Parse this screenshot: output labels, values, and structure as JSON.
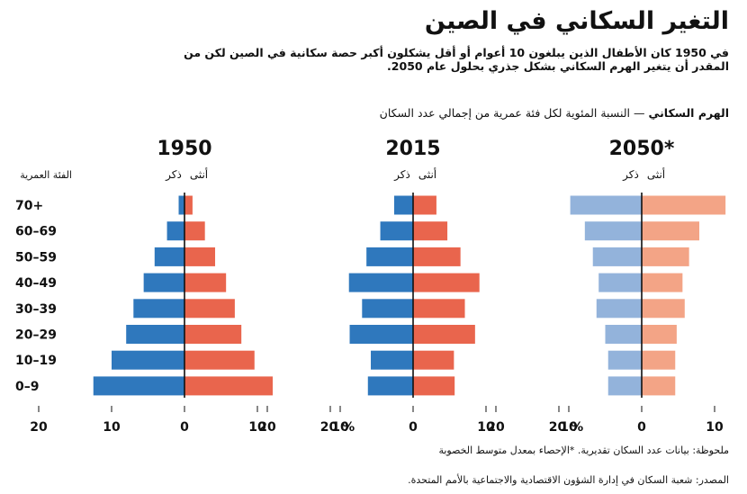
{
  "title": "التغير السكاني في الصين",
  "subtitle": "في 1950 كان الأطفال الذين يبلغون 10 أعوام أو أقل يشكلون أكبر حصة سكانية في الصين لكن من المقدر أن يتغير الهرم السكاني بشكل جذري بحلول عام 2050.",
  "chart_label": {
    "main": "الهرم السكاني",
    "separator": "—",
    "detail": "النسبة المئوية لكل فئة عمرية من إجمالي عدد السكان"
  },
  "note": "ملحوظة: بيانات عدد السكان تقديرية.  *الإحصاء بمعدل متوسط الخصوبة",
  "source": "المصدر: شعبة السكان في إدارة الشؤون الاقتصادية والاجتماعية بالأمم المتحدة.",
  "colors": {
    "male_1950": "#2f78bd",
    "female_1950": "#e9654d",
    "male_2050": "#93b3db",
    "female_2050": "#f3a486"
  },
  "chart_data": {
    "type": "bar",
    "title": "الهرم السكاني",
    "ylabel": "الفئة العمرية",
    "categories": [
      "70+",
      "60–69",
      "50–59",
      "40–49",
      "30–39",
      "20–29",
      "10–19",
      "0–9"
    ],
    "male_label": "ذكر",
    "female_label": "أنثى",
    "xlim": [
      -20,
      20
    ],
    "x_ticks": [
      "20",
      "10",
      "0",
      "10",
      "20 %"
    ],
    "panels": [
      {
        "year": "1950",
        "style": "solid",
        "male": [
          0.8,
          2.4,
          4.1,
          5.6,
          7.0,
          8.0,
          10.0,
          12.5
        ],
        "female": [
          1.1,
          2.8,
          4.2,
          5.7,
          6.9,
          7.8,
          9.6,
          12.1
        ]
      },
      {
        "year": "2015",
        "style": "solid",
        "male": [
          2.6,
          4.5,
          6.4,
          8.8,
          7.0,
          8.7,
          5.8,
          6.2
        ],
        "female": [
          3.2,
          4.7,
          6.5,
          9.1,
          7.1,
          8.5,
          5.6,
          5.7
        ]
      },
      {
        "year": "2050*",
        "style": "light",
        "male": [
          9.8,
          7.8,
          6.7,
          5.9,
          6.2,
          5.0,
          4.6,
          4.6
        ],
        "female": [
          11.5,
          7.9,
          6.5,
          5.6,
          5.9,
          4.8,
          4.6,
          4.6
        ]
      }
    ]
  }
}
